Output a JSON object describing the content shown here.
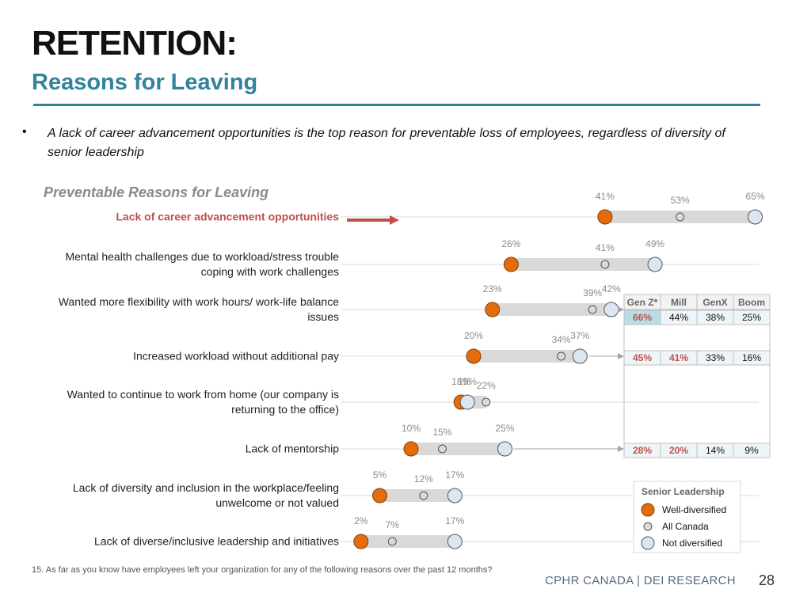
{
  "header": {
    "title": "RETENTION:",
    "subtitle": "Reasons for Leaving"
  },
  "bullet": "A lack of career advancement opportunities is the top reason for preventable loss of employees, regardless of diversity of senior leadership",
  "chart_data": {
    "type": "dumbbell",
    "title": "Preventable Reasons for Leaving",
    "categories": [
      "Lack of career advancement opportunities",
      "Mental health challenges due to workload/stress trouble coping with work challenges",
      "Wanted more flexibility with work hours/ work-life balance issues",
      "Increased workload without additional pay",
      "Wanted to continue to work from home (our company is returning to the office)",
      "Lack of mentorship",
      "Lack of diversity and inclusion in the workplace/feeling unwelcome or not valued",
      "Lack of diverse/inclusive leadership and initiatives"
    ],
    "highlight_category": 0,
    "series": [
      {
        "name": "Well-diversified",
        "color": "#e46c0a",
        "values": [
          41,
          26,
          23,
          20,
          18,
          10,
          5,
          2
        ],
        "value_labels": [
          "41%",
          "26%",
          "23%",
          "20%",
          "18%",
          "10%",
          "5%",
          "2%"
        ]
      },
      {
        "name": "All Canada",
        "color": "#d9d9d9",
        "values": [
          53,
          41,
          39,
          34,
          22,
          15,
          12,
          7
        ],
        "value_labels": [
          "53%",
          "41%",
          "39%",
          "34%",
          "22%",
          "15%",
          "12%",
          "7%"
        ]
      },
      {
        "name": "Not diversified",
        "color": "#dce6f2",
        "values": [
          65,
          49,
          42,
          37,
          19,
          25,
          17,
          17
        ],
        "value_labels": [
          "65%",
          "49%",
          "42%",
          "37%",
          "19%",
          "25%",
          "17%",
          "17%"
        ]
      }
    ],
    "legend_title": "Senior Leadership"
  },
  "generation_table": {
    "columns": [
      "Gen Z*",
      "Mill",
      "GenX",
      "Boom"
    ],
    "rows": [
      {
        "cells": [
          "66%",
          "44%",
          "38%",
          "25%"
        ],
        "highlight": [
          0
        ]
      },
      {
        "cells": [
          "45%",
          "41%",
          "33%",
          "16%"
        ],
        "highlight": [
          0,
          1
        ]
      },
      {
        "cells": [
          "28%",
          "20%",
          "14%",
          "9%"
        ],
        "highlight": [
          0,
          1
        ]
      }
    ]
  },
  "footnote": "15.  As far as you know have employees left your organization for any of the following reasons over the past 12 months?",
  "footer": "CPHR CANADA | DEI RESEARCH",
  "page_number": "28"
}
